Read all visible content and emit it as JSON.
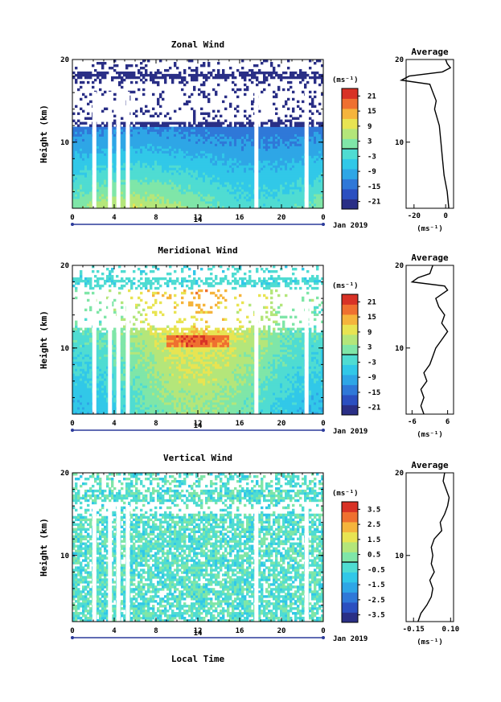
{
  "colormap": [
    "#2a2f86",
    "#2b4fc0",
    "#2f78d8",
    "#2ea6e6",
    "#31c8e8",
    "#4fdcd2",
    "#7fe6a8",
    "#b4e67a",
    "#e8e452",
    "#f5b43c",
    "#ef7030",
    "#d83226"
  ],
  "date_label": "Jan 2019",
  "xlabel": "Local Time",
  "cb_unit": "(ms⁻¹)",
  "chart_data": [
    {
      "type": "heatmap",
      "title": "Zonal Wind",
      "ylabel": "Height (km)",
      "xlim": [
        0,
        24
      ],
      "ylim": [
        2,
        20
      ],
      "xticks": [
        "0",
        "4",
        "8",
        "12",
        "16",
        "20",
        "0"
      ],
      "day_label": "14",
      "yticks": [
        "10",
        "20"
      ],
      "colorbar": {
        "vmin": -24,
        "vmax": 24,
        "ticks": [
          "21",
          "15",
          "9",
          "3",
          "-3",
          "-9",
          "-15",
          "-21"
        ]
      },
      "data_gaps_hours": [
        2.1,
        3.6,
        4.4,
        5.3,
        17.6,
        22.4
      ],
      "profile_points": {
        "height_km": [
          2,
          4,
          6,
          8,
          10,
          12,
          14,
          15,
          16,
          17,
          17.5,
          18,
          18.5,
          19,
          19.5,
          20
        ],
        "value": [
          2,
          1,
          -1,
          -2,
          -3,
          -4,
          -7,
          -6,
          -8,
          -10,
          -28,
          -23,
          -2,
          3,
          1,
          0
        ]
      },
      "profile": {
        "title": "Average",
        "xlabel": "(ms⁻¹)",
        "xlim": [
          -25,
          5
        ],
        "xticks": [
          "-20",
          "0"
        ],
        "yticks": [
          "10",
          "20"
        ],
        "heights_km": [
          2,
          4,
          6,
          8,
          10,
          12,
          14,
          15,
          16,
          17,
          17.5,
          18,
          18.5,
          19,
          19.5,
          20
        ],
        "values": [
          2,
          1,
          -1,
          -2,
          -3,
          -4,
          -7,
          -6,
          -8,
          -10,
          -28,
          -23,
          -2,
          3,
          1,
          0
        ]
      }
    },
    {
      "type": "heatmap",
      "title": "Meridional Wind",
      "ylabel": "Height (km)",
      "xlim": [
        0,
        24
      ],
      "ylim": [
        2,
        20
      ],
      "xticks": [
        "0",
        "4",
        "8",
        "12",
        "16",
        "20",
        "0"
      ],
      "day_label": "14",
      "yticks": [
        "10",
        "20"
      ],
      "colorbar": {
        "vmin": -24,
        "vmax": 24,
        "ticks": [
          "21",
          "15",
          "9",
          "3",
          "-3",
          "-9",
          "-15",
          "-21"
        ]
      },
      "data_gaps_hours": [
        2.1,
        3.6,
        4.4,
        5.3,
        17.6,
        22.4
      ],
      "profile": {
        "title": "Average",
        "xlabel": "(ms⁻¹)",
        "xlim": [
          -8,
          8
        ],
        "xticks": [
          "-6",
          "6"
        ],
        "yticks": [
          "10",
          "20"
        ],
        "heights_km": [
          2,
          3,
          4,
          5,
          6,
          7,
          8,
          9,
          10,
          11,
          12,
          13,
          14,
          15,
          16,
          17,
          17.5,
          18,
          18.5,
          19,
          20
        ],
        "values": [
          -2,
          -3,
          -2,
          -3,
          -1,
          -2,
          0,
          1,
          2,
          4,
          6,
          4,
          5,
          3,
          2,
          6,
          5,
          -6,
          -4,
          0,
          1
        ]
      }
    },
    {
      "type": "heatmap",
      "title": "Vertical Wind",
      "ylabel": "Height (km)",
      "xlim": [
        0,
        24
      ],
      "ylim": [
        2,
        20
      ],
      "xticks": [
        "0",
        "4",
        "8",
        "12",
        "16",
        "20",
        "0"
      ],
      "day_label": "14",
      "yticks": [
        "10",
        "20"
      ],
      "colorbar": {
        "vmin": -4,
        "vmax": 4,
        "ticks": [
          "3.5",
          "2.5",
          "1.5",
          "0.5",
          "-0.5",
          "-1.5",
          "-2.5",
          "-3.5"
        ]
      },
      "data_gaps_hours": [
        2.1,
        3.6,
        4.4,
        5.3,
        17.6,
        22.4
      ],
      "profile": {
        "title": "Average",
        "xlabel": "(ms⁻¹)",
        "xlim": [
          -0.2,
          0.12
        ],
        "xticks": [
          "-0.15",
          "0.10"
        ],
        "yticks": [
          "10",
          "20"
        ],
        "heights_km": [
          2,
          3,
          4,
          5,
          6,
          7,
          8,
          9,
          10,
          11,
          12,
          13,
          14,
          15,
          16,
          17,
          18,
          19,
          20
        ],
        "values": [
          -0.12,
          -0.1,
          -0.06,
          -0.03,
          -0.02,
          -0.04,
          -0.01,
          -0.03,
          -0.02,
          -0.03,
          -0.01,
          0.04,
          0.03,
          0.06,
          0.08,
          0.09,
          0.07,
          0.05,
          0.06
        ]
      }
    }
  ]
}
